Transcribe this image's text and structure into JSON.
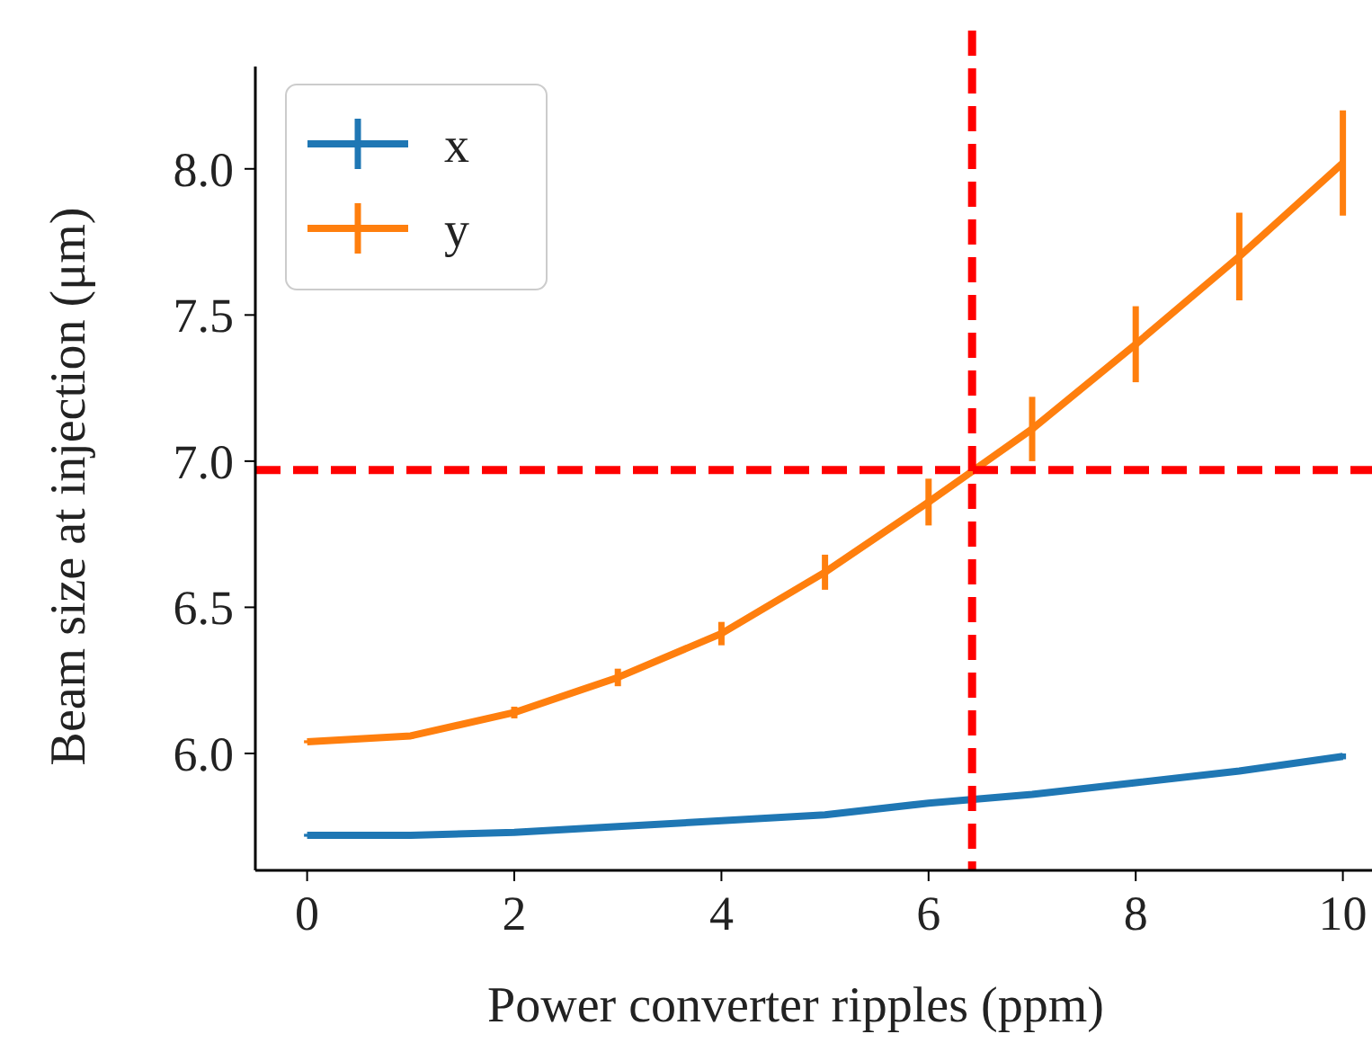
{
  "chart_data": {
    "type": "line",
    "xlabel": "Power converter ripples (ppm)",
    "ylabel": "Beam size at injection (μm)",
    "x": [
      0,
      1,
      2,
      3,
      4,
      5,
      6,
      7,
      8,
      9,
      10
    ],
    "xlim": [
      -0.5,
      10.5
    ],
    "xticks": [
      0,
      2,
      4,
      6,
      8,
      10
    ],
    "ylim": [
      5.6,
      8.35
    ],
    "yticks": [
      {
        "value": 6,
        "label": "6.0"
      },
      6.5,
      {
        "value": 7,
        "label": "7.0"
      },
      7.5,
      {
        "value": 8,
        "label": "8.0"
      }
    ],
    "series": [
      {
        "name": "x",
        "color": "#1f77b4",
        "values": [
          5.72,
          5.72,
          5.73,
          5.75,
          5.77,
          5.79,
          5.83,
          5.86,
          5.9,
          5.94,
          5.99
        ],
        "errors": [
          0.005,
          0.005,
          0.005,
          0.005,
          0.005,
          0.005,
          0.005,
          0.005,
          0.01,
          0.01,
          0.01
        ]
      },
      {
        "name": "y",
        "color": "#ff7f0e",
        "values": [
          6.04,
          6.06,
          6.14,
          6.26,
          6.41,
          6.62,
          6.86,
          7.11,
          7.4,
          7.7,
          8.02
        ],
        "errors": [
          0.005,
          0.01,
          0.02,
          0.03,
          0.04,
          0.06,
          0.08,
          0.11,
          0.13,
          0.15,
          0.18
        ]
      }
    ],
    "ref_lines": [
      {
        "axis": "y",
        "value": 6.97,
        "color": "#ff0000",
        "line_style": "dashed"
      },
      {
        "axis": "x",
        "value": 6.42,
        "color": "#ff0000",
        "line_style": "dashed"
      }
    ],
    "legend": "top left",
    "grid": false,
    "marker": "none",
    "line_style": "solid"
  }
}
